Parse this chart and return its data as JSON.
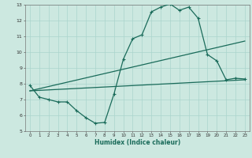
{
  "xlabel": "Humidex (Indice chaleur)",
  "xlim": [
    -0.5,
    23.5
  ],
  "ylim": [
    5,
    13
  ],
  "xticks": [
    0,
    1,
    2,
    3,
    4,
    5,
    6,
    7,
    8,
    9,
    10,
    11,
    12,
    13,
    14,
    15,
    16,
    17,
    18,
    19,
    20,
    21,
    22,
    23
  ],
  "yticks": [
    5,
    6,
    7,
    8,
    9,
    10,
    11,
    12,
    13
  ],
  "bg_color": "#cce8e0",
  "grid_color": "#aad4cc",
  "line_color": "#1a6b5a",
  "line1_x": [
    0,
    1,
    2,
    3,
    4,
    5,
    6,
    7,
    8,
    9,
    10,
    11,
    12,
    13,
    14,
    15,
    16,
    17,
    18,
    19,
    20,
    21,
    22,
    23
  ],
  "line1_y": [
    7.9,
    7.15,
    7.0,
    6.85,
    6.85,
    6.3,
    5.85,
    5.5,
    5.55,
    7.35,
    9.55,
    10.85,
    11.1,
    12.55,
    12.85,
    13.05,
    12.65,
    12.85,
    12.15,
    9.85,
    9.45,
    8.25,
    8.35,
    8.3
  ],
  "line2_x": [
    0,
    23
  ],
  "line2_y": [
    7.55,
    10.7
  ],
  "line3_x": [
    0,
    23
  ],
  "line3_y": [
    7.55,
    8.25
  ]
}
